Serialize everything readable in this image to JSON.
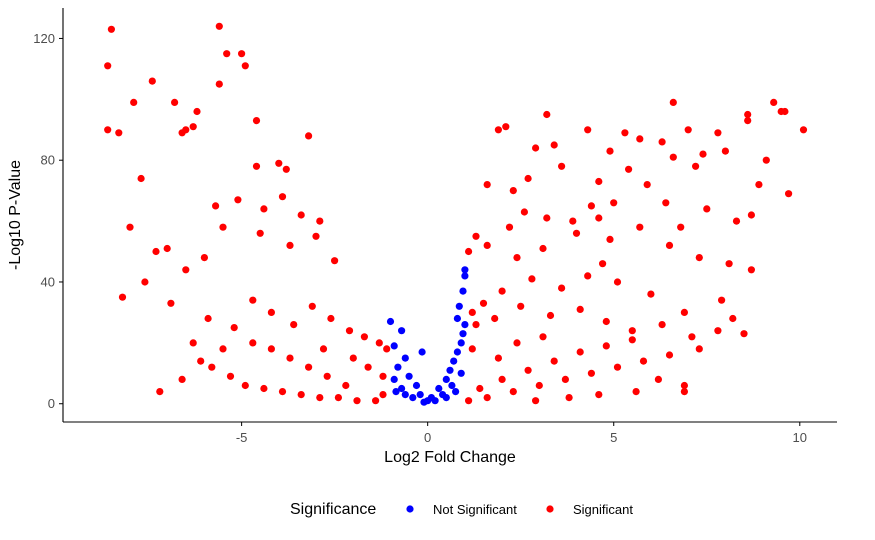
{
  "chart_data": {
    "type": "scatter",
    "xlabel": "Log2 Fold Change",
    "ylabel": "-Log10 P-Value",
    "xlim": [
      -9.8,
      11.0
    ],
    "ylim": [
      -6,
      130
    ],
    "xticks": [
      -5,
      0,
      5,
      10
    ],
    "yticks": [
      0,
      40,
      80,
      120
    ],
    "xtick_labels": [
      "-5",
      "0",
      "5",
      "10"
    ],
    "ytick_labels": [
      "0",
      "40",
      "80",
      "120"
    ],
    "grid": false,
    "legend": {
      "title": "Significance",
      "placement": "bottom",
      "entries": [
        "Not Significant",
        "Significant"
      ]
    },
    "colors": {
      "Not Significant": "#0000ff",
      "Significant": "#ff0000"
    },
    "series": [
      {
        "name": "Not Significant",
        "points": [
          [
            -1.0,
            27
          ],
          [
            -0.7,
            24
          ],
          [
            -0.15,
            17
          ],
          [
            0.8,
            28
          ],
          [
            0.85,
            32
          ],
          [
            0.95,
            37
          ],
          [
            1.0,
            42
          ],
          [
            1.0,
            44
          ],
          [
            -0.9,
            19
          ],
          [
            -0.6,
            15
          ],
          [
            -0.8,
            12
          ],
          [
            -0.5,
            9
          ],
          [
            -0.3,
            6
          ],
          [
            -0.2,
            3
          ],
          [
            0.0,
            1
          ],
          [
            0.1,
            2
          ],
          [
            0.3,
            5
          ],
          [
            0.5,
            8
          ],
          [
            0.6,
            11
          ],
          [
            0.7,
            14
          ],
          [
            0.8,
            17
          ],
          [
            0.9,
            20
          ],
          [
            0.95,
            23
          ],
          [
            1.0,
            26
          ],
          [
            0.4,
            3
          ],
          [
            -0.4,
            2
          ],
          [
            -0.7,
            5
          ],
          [
            0.65,
            6
          ],
          [
            -0.9,
            8
          ],
          [
            0.9,
            10
          ],
          [
            0.2,
            1
          ],
          [
            -0.1,
            0.5
          ],
          [
            0.5,
            2
          ],
          [
            -0.6,
            3
          ],
          [
            0.75,
            4
          ],
          [
            -0.85,
            4
          ]
        ]
      },
      {
        "name": "Significant",
        "points": [
          [
            -8.5,
            123
          ],
          [
            -8.6,
            111
          ],
          [
            -8.6,
            90
          ],
          [
            -8.3,
            89
          ],
          [
            -7.9,
            99
          ],
          [
            -7.4,
            106
          ],
          [
            -7.7,
            74
          ],
          [
            -8.0,
            58
          ],
          [
            -6.8,
            99
          ],
          [
            -6.6,
            89
          ],
          [
            -6.2,
            96
          ],
          [
            -6.3,
            91
          ],
          [
            -6.5,
            90
          ],
          [
            -5.6,
            124
          ],
          [
            -5.6,
            105
          ],
          [
            -5.0,
            115
          ],
          [
            -4.9,
            111
          ],
          [
            -5.4,
            115
          ],
          [
            -4.6,
            93
          ],
          [
            -4.6,
            78
          ],
          [
            -4.0,
            79
          ],
          [
            -3.8,
            77
          ],
          [
            -3.2,
            88
          ],
          [
            -5.1,
            67
          ],
          [
            -5.7,
            65
          ],
          [
            -5.5,
            58
          ],
          [
            -4.4,
            64
          ],
          [
            -3.9,
            68
          ],
          [
            -3.4,
            62
          ],
          [
            -2.9,
            60
          ],
          [
            -7.0,
            51
          ],
          [
            -7.3,
            50
          ],
          [
            -6.5,
            44
          ],
          [
            -6.0,
            48
          ],
          [
            -7.6,
            40
          ],
          [
            -8.2,
            35
          ],
          [
            -3.0,
            55
          ],
          [
            -4.5,
            56
          ],
          [
            -3.7,
            52
          ],
          [
            -2.5,
            47
          ],
          [
            -6.9,
            33
          ],
          [
            -5.9,
            28
          ],
          [
            -5.2,
            25
          ],
          [
            -4.7,
            34
          ],
          [
            -4.2,
            30
          ],
          [
            -3.6,
            26
          ],
          [
            -3.1,
            32
          ],
          [
            -2.6,
            28
          ],
          [
            -2.1,
            24
          ],
          [
            -1.7,
            22
          ],
          [
            -1.3,
            20
          ],
          [
            -1.1,
            18
          ],
          [
            -7.2,
            4
          ],
          [
            -6.6,
            8
          ],
          [
            -6.1,
            14
          ],
          [
            -5.8,
            12
          ],
          [
            -5.3,
            9
          ],
          [
            -4.9,
            6
          ],
          [
            -4.4,
            5
          ],
          [
            -3.9,
            4
          ],
          [
            -3.4,
            3
          ],
          [
            -2.9,
            2
          ],
          [
            -2.4,
            2
          ],
          [
            -1.9,
            1
          ],
          [
            -1.4,
            1
          ],
          [
            -1.2,
            3
          ],
          [
            -2.2,
            6
          ],
          [
            -2.7,
            9
          ],
          [
            -3.2,
            12
          ],
          [
            -3.7,
            15
          ],
          [
            -4.2,
            18
          ],
          [
            -4.7,
            20
          ],
          [
            -5.5,
            18
          ],
          [
            -6.3,
            20
          ],
          [
            -1.6,
            12
          ],
          [
            -1.2,
            9
          ],
          [
            -2.0,
            15
          ],
          [
            -2.8,
            18
          ],
          [
            3.2,
            95
          ],
          [
            6.6,
            99
          ],
          [
            9.3,
            99
          ],
          [
            9.6,
            96
          ],
          [
            10.1,
            90
          ],
          [
            8.6,
            95
          ],
          [
            8.6,
            93
          ],
          [
            7.8,
            89
          ],
          [
            7.0,
            90
          ],
          [
            2.1,
            91
          ],
          [
            1.9,
            90
          ],
          [
            2.9,
            84
          ],
          [
            4.3,
            90
          ],
          [
            5.3,
            89
          ],
          [
            5.7,
            87
          ],
          [
            6.3,
            86
          ],
          [
            4.9,
            83
          ],
          [
            3.4,
            85
          ],
          [
            6.6,
            81
          ],
          [
            7.4,
            82
          ],
          [
            7.2,
            78
          ],
          [
            9.1,
            80
          ],
          [
            8.0,
            83
          ],
          [
            5.4,
            77
          ],
          [
            3.6,
            78
          ],
          [
            2.7,
            74
          ],
          [
            1.6,
            72
          ],
          [
            2.3,
            70
          ],
          [
            4.6,
            73
          ],
          [
            5.9,
            72
          ],
          [
            8.9,
            72
          ],
          [
            9.7,
            69
          ],
          [
            8.3,
            60
          ],
          [
            8.7,
            62
          ],
          [
            7.5,
            64
          ],
          [
            6.4,
            66
          ],
          [
            4.4,
            65
          ],
          [
            3.2,
            61
          ],
          [
            2.2,
            58
          ],
          [
            1.3,
            55
          ],
          [
            1.1,
            50
          ],
          [
            1.6,
            52
          ],
          [
            2.4,
            48
          ],
          [
            3.1,
            51
          ],
          [
            4.0,
            56
          ],
          [
            4.9,
            54
          ],
          [
            5.7,
            58
          ],
          [
            6.5,
            52
          ],
          [
            7.3,
            48
          ],
          [
            8.1,
            46
          ],
          [
            8.7,
            44
          ],
          [
            7.9,
            34
          ],
          [
            8.2,
            28
          ],
          [
            6.9,
            30
          ],
          [
            6.0,
            36
          ],
          [
            5.1,
            40
          ],
          [
            4.3,
            42
          ],
          [
            3.6,
            38
          ],
          [
            2.8,
            41
          ],
          [
            2.0,
            37
          ],
          [
            1.5,
            33
          ],
          [
            1.2,
            30
          ],
          [
            1.3,
            26
          ],
          [
            1.8,
            28
          ],
          [
            2.5,
            32
          ],
          [
            3.3,
            29
          ],
          [
            4.1,
            31
          ],
          [
            4.8,
            27
          ],
          [
            5.5,
            24
          ],
          [
            6.3,
            26
          ],
          [
            7.1,
            22
          ],
          [
            7.8,
            24
          ],
          [
            8.5,
            23
          ],
          [
            7.3,
            18
          ],
          [
            6.5,
            16
          ],
          [
            5.8,
            14
          ],
          [
            5.1,
            12
          ],
          [
            4.4,
            10
          ],
          [
            3.7,
            8
          ],
          [
            3.0,
            6
          ],
          [
            2.3,
            4
          ],
          [
            1.6,
            2
          ],
          [
            1.1,
            1
          ],
          [
            1.4,
            5
          ],
          [
            2.0,
            8
          ],
          [
            2.7,
            11
          ],
          [
            3.4,
            14
          ],
          [
            4.1,
            17
          ],
          [
            4.8,
            19
          ],
          [
            5.5,
            21
          ],
          [
            6.2,
            8
          ],
          [
            6.9,
            6
          ],
          [
            6.9,
            4
          ],
          [
            5.6,
            4
          ],
          [
            4.6,
            3
          ],
          [
            3.8,
            2
          ],
          [
            2.9,
            1
          ],
          [
            1.9,
            15
          ],
          [
            1.2,
            18
          ],
          [
            2.4,
            20
          ],
          [
            3.1,
            22
          ],
          [
            4.7,
            46
          ],
          [
            3.9,
            60
          ],
          [
            6.8,
            58
          ],
          [
            5.0,
            66
          ],
          [
            2.6,
            63
          ],
          [
            9.5,
            96
          ],
          [
            4.6,
            61
          ]
        ]
      }
    ]
  }
}
